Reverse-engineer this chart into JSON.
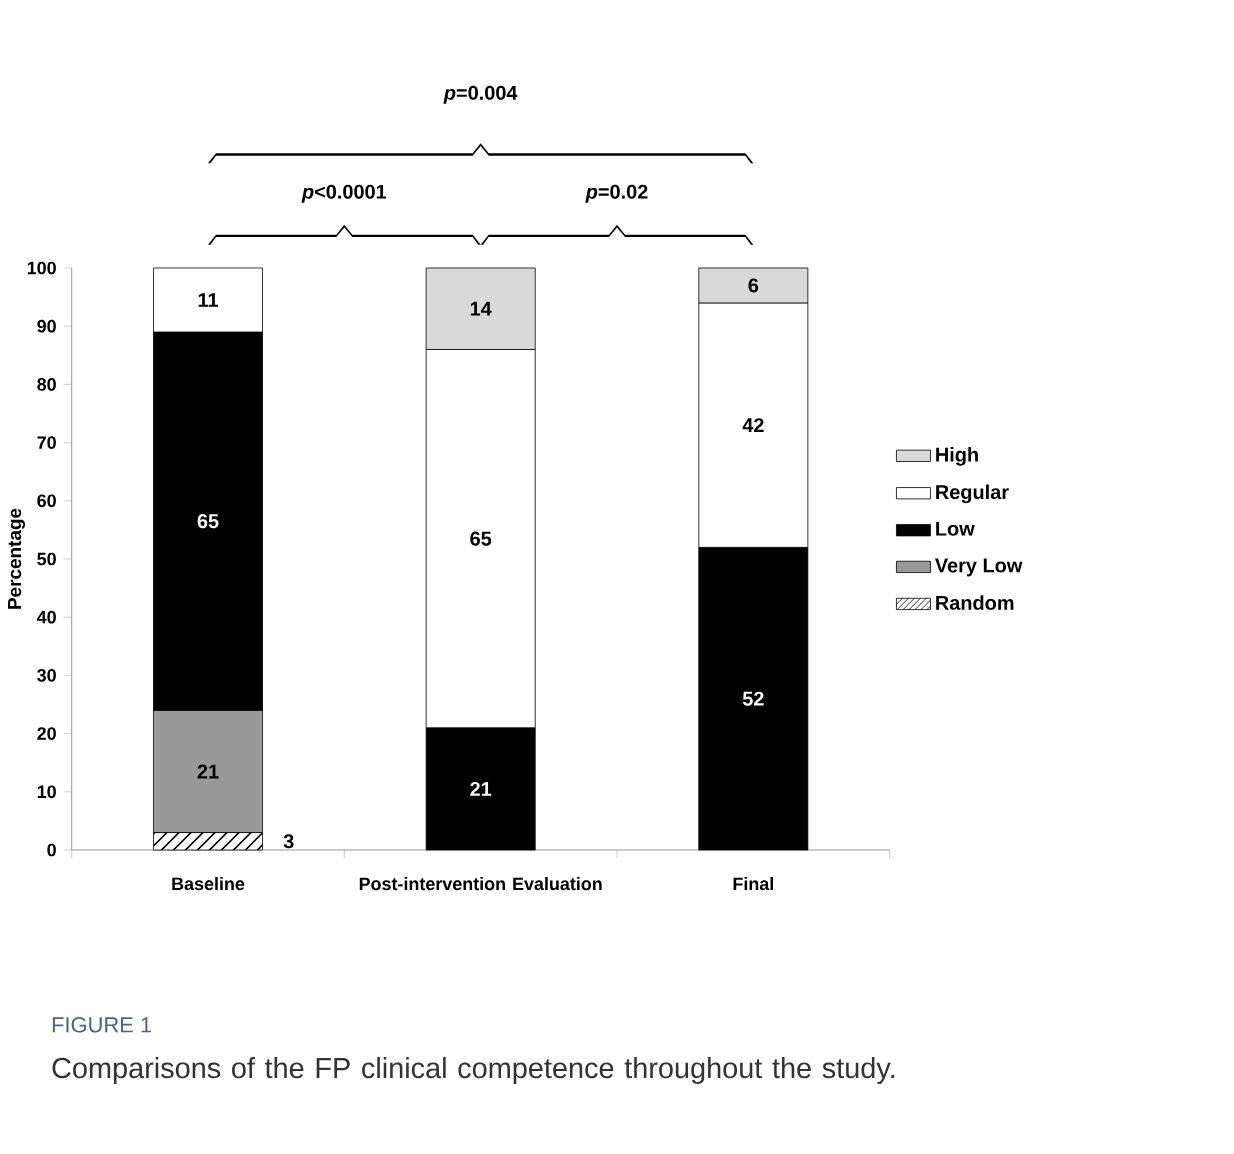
{
  "chart_data": {
    "type": "bar",
    "stacked": true,
    "ylabel": "Percentage",
    "categories": [
      "Baseline",
      "Post-intervention Evaluation",
      "Final"
    ],
    "ylim": [
      0,
      100
    ],
    "yticks": [
      0,
      10,
      20,
      30,
      40,
      50,
      60,
      70,
      80,
      90,
      100
    ],
    "grid": false,
    "legend": "right",
    "series": [
      {
        "name": "Random",
        "color": "#ffffff",
        "values": [
          3,
          null,
          null
        ],
        "value_labels": [
          "3",
          null,
          null
        ]
      },
      {
        "name": "Very Low",
        "color": "#999999",
        "values": [
          21,
          null,
          null
        ],
        "value_labels": [
          "21",
          null,
          null
        ]
      },
      {
        "name": "Low",
        "color": "#000000",
        "values": [
          65,
          21,
          52
        ],
        "value_labels": [
          "65",
          "21",
          "52"
        ]
      },
      {
        "name": "Regular",
        "color": "#ffffff",
        "values": [
          11,
          65,
          42
        ],
        "value_labels": [
          "11",
          "65",
          "42"
        ]
      },
      {
        "name": "High",
        "color": "#d9d9d9",
        "values": [
          null,
          14,
          6
        ],
        "value_labels": [
          null,
          "14",
          "6"
        ]
      }
    ],
    "annotations": [
      "*p*=0.004",
      "*p*<0.0001",
      "*p*=0.02",
      "FIGURE 1",
      "Comparisons of the FP clinical competence throughout the study."
    ]
  }
}
